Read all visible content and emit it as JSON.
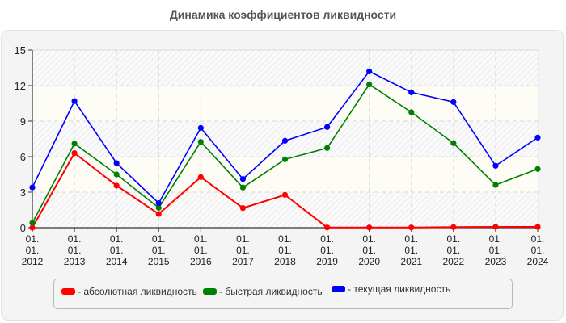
{
  "title": "Динамика коэффициентов ликвидности",
  "chart_data": {
    "type": "line",
    "title": "Динамика коэффициентов ликвидности",
    "xlabel": "",
    "ylabel": "",
    "ylim": [
      0,
      15
    ],
    "yticks": [
      0,
      3,
      6,
      9,
      12,
      15
    ],
    "grid": true,
    "legend_position": "bottom",
    "categories": [
      "01.01.2012",
      "01.01.2013",
      "01.01.2014",
      "01.01.2015",
      "01.01.2016",
      "01.01.2017",
      "01.01.2018",
      "01.01.2019",
      "01.01.2020",
      "01.01.2021",
      "01.01.2022",
      "01.01.2023",
      "01.01.2024"
    ],
    "series": [
      {
        "name": "абсолютная ликвидность",
        "color": "#ff0000",
        "values": [
          0.0,
          6.3,
          3.55,
          1.16,
          4.27,
          1.66,
          2.77,
          0.02,
          0.02,
          0.02,
          0.05,
          0.07,
          0.07
        ]
      },
      {
        "name": "быстрая ликвидность",
        "color": "#008000",
        "values": [
          0.4,
          7.1,
          4.5,
          1.68,
          7.25,
          3.39,
          5.77,
          6.73,
          12.1,
          9.75,
          7.14,
          3.61,
          4.96
        ]
      },
      {
        "name": "текущая ликвидность",
        "color": "#0000ff",
        "values": [
          3.4,
          10.7,
          5.45,
          2.07,
          8.43,
          4.11,
          7.34,
          8.5,
          13.2,
          11.43,
          10.61,
          5.23,
          7.61
        ]
      }
    ]
  },
  "legend": {
    "items": [
      {
        "label": "- абсолютная ликвидность",
        "color": "#ff0000"
      },
      {
        "label": "- быстрая ликвидность",
        "color": "#008000"
      },
      {
        "label": "- текущая ликвидность",
        "color": "#0000ff"
      }
    ]
  }
}
